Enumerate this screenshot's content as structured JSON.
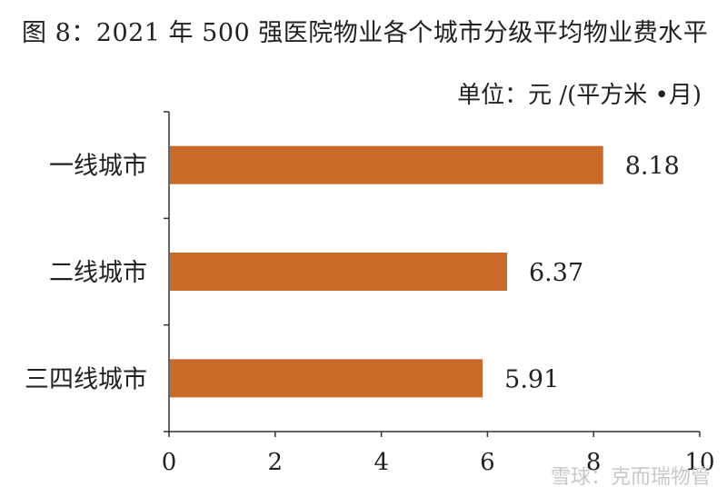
{
  "chart_data": {
    "type": "bar",
    "orientation": "horizontal",
    "title": "图 8：2021 年 500 强医院物业各个城市分级平均物业费水平",
    "subtitle": "单位：元 /(平方米 •月)",
    "categories": [
      "一线城市",
      "二线城市",
      "三四线城市"
    ],
    "values": [
      8.18,
      6.37,
      5.91
    ],
    "value_labels": [
      "8.18",
      "6.37",
      "5.91"
    ],
    "xlim": [
      0,
      10
    ],
    "xticks": [
      0,
      2,
      4,
      6,
      8,
      10
    ],
    "xtick_labels": [
      "0",
      "2",
      "4",
      "6",
      "8",
      "10"
    ],
    "grid": false,
    "legend": "none",
    "bar_color": "#C96A28"
  },
  "watermark": "雪球：克而瑞物管"
}
